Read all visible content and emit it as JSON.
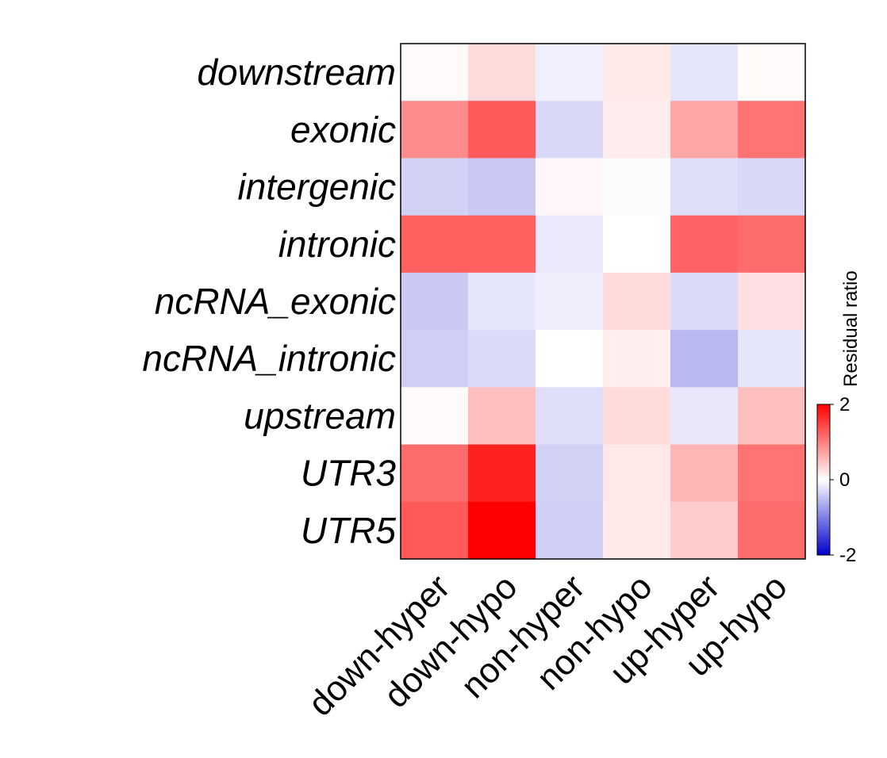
{
  "chart_data": {
    "type": "heatmap",
    "title": "",
    "rows": [
      "downstream",
      "exonic",
      "intergenic",
      "intronic",
      "ncRNA_exonic",
      "ncRNA_intronic",
      "upstream",
      "UTR3",
      "UTR5"
    ],
    "columns": [
      "down-hyper",
      "down-hypo",
      "non-hyper",
      "non-hypo",
      "up-hyper",
      "up-hypo"
    ],
    "values": [
      [
        0.05,
        0.28,
        -0.12,
        0.17,
        -0.2,
        0.03
      ],
      [
        0.9,
        1.3,
        -0.3,
        0.15,
        0.7,
        1.1
      ],
      [
        -0.35,
        -0.42,
        0.06,
        -0.03,
        -0.25,
        -0.3
      ],
      [
        1.25,
        1.25,
        -0.17,
        0.0,
        1.22,
        1.15
      ],
      [
        -0.42,
        -0.2,
        -0.13,
        0.28,
        -0.28,
        0.25
      ],
      [
        -0.38,
        -0.28,
        0.0,
        0.13,
        -0.55,
        -0.2
      ],
      [
        0.04,
        0.5,
        -0.25,
        0.28,
        -0.18,
        0.5
      ],
      [
        1.15,
        1.75,
        -0.35,
        0.18,
        0.58,
        1.1
      ],
      [
        1.3,
        2.0,
        -0.37,
        0.17,
        0.4,
        1.15
      ]
    ],
    "colorbar": {
      "title": "Residual ratio",
      "min": -2,
      "max": 2,
      "ticks": [
        2,
        0,
        -2
      ],
      "tick_labels": [
        "2",
        "0",
        "-2"
      ],
      "colors": {
        "low": "#0000cc",
        "mid": "#ffffff",
        "high": "#ff0000"
      }
    },
    "frame_color": "#000000"
  }
}
